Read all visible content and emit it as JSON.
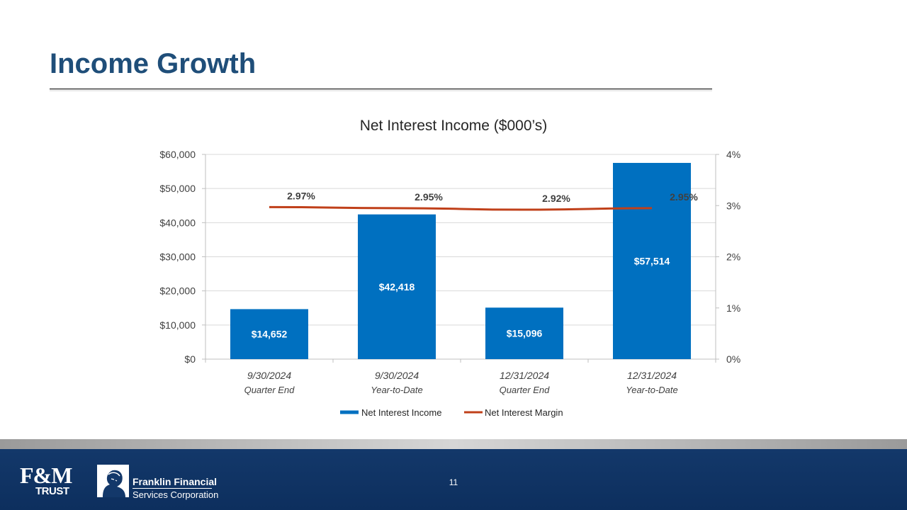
{
  "slide": {
    "title": "Income Growth",
    "page_number": "11"
  },
  "footer": {
    "fm_logo_mark": "F&M",
    "fm_logo_sub": "TRUST",
    "company_line1": "Franklin Financial",
    "company_line2": "Services Corporation"
  },
  "colors": {
    "title": "#1f4e79",
    "bar": "#0070c0",
    "line": "#c0401a",
    "footer": "#10346a"
  },
  "chart_data": {
    "type": "bar",
    "title": "Net Interest Income ($000’s)",
    "categories": [
      "9/30/2024",
      "9/30/2024",
      "12/31/2024",
      "12/31/2024"
    ],
    "category_sublabels": [
      "Quarter End",
      "Year-to-Date",
      "Quarter End",
      "Year-to-Date"
    ],
    "series": [
      {
        "name": "Net Interest Income",
        "type": "bar",
        "axis": "left",
        "values": [
          14652,
          42418,
          15096,
          57514
        ],
        "labels": [
          "$14,652",
          "$42,418",
          "$15,096",
          "$57,514"
        ]
      },
      {
        "name": "Net Interest Margin",
        "type": "line",
        "axis": "right",
        "values": [
          2.97,
          2.95,
          2.92,
          2.95
        ],
        "labels": [
          "2.97%",
          "2.95%",
          "2.92%",
          "2.95%"
        ]
      }
    ],
    "y_left": {
      "min": 0,
      "max": 60000,
      "ticks": [
        "$0",
        "$10,000",
        "$20,000",
        "$30,000",
        "$40,000",
        "$50,000",
        "$60,000"
      ]
    },
    "y_right": {
      "min": 0,
      "max": 4,
      "ticks": [
        "0%",
        "1%",
        "2%",
        "3%",
        "4%"
      ]
    },
    "grid": true,
    "legend": "bottom"
  }
}
